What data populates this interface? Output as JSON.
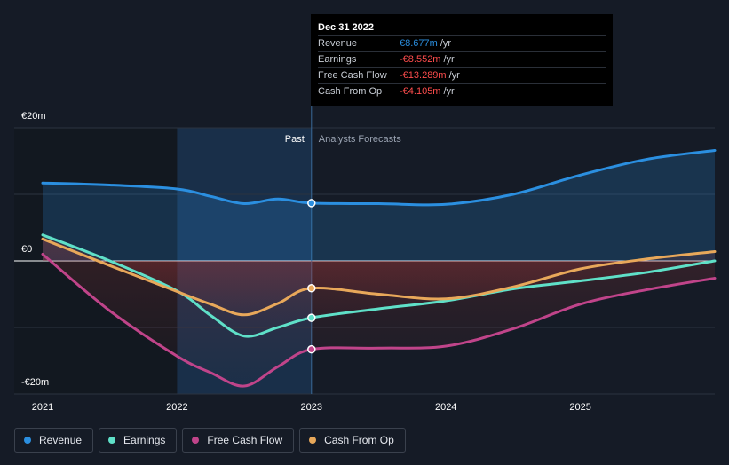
{
  "tooltip": {
    "title": "Dec 31 2022",
    "rows": [
      {
        "name": "Revenue",
        "value": "€8.677m",
        "unit": "/yr",
        "color": "#2b8fe0"
      },
      {
        "name": "Earnings",
        "value": "-€8.552m",
        "unit": "/yr",
        "color": "#ff4d4d"
      },
      {
        "name": "Free Cash Flow",
        "value": "-€13.289m",
        "unit": "/yr",
        "color": "#ff4d4d"
      },
      {
        "name": "Cash From Op",
        "value": "-€4.105m",
        "unit": "/yr",
        "color": "#ff4d4d"
      }
    ]
  },
  "legend": [
    {
      "label": "Revenue",
      "color": "#2b8fe0"
    },
    {
      "label": "Earnings",
      "color": "#5fe0c8"
    },
    {
      "label": "Free Cash Flow",
      "color": "#c0448a"
    },
    {
      "label": "Cash From Op",
      "color": "#e8a85a"
    }
  ],
  "chart_data": {
    "type": "line",
    "y_labels": [
      "€20m",
      "€0",
      "-€20m"
    ],
    "y_label_values": [
      20,
      0,
      -20
    ],
    "ylim": [
      -20,
      20
    ],
    "xlim": [
      2021,
      2026
    ],
    "x_ticks": [
      {
        "label": "2021",
        "value": 2021.0
      },
      {
        "label": "2022",
        "value": 2022.0
      },
      {
        "label": "2023",
        "value": 2023.0
      },
      {
        "label": "2024",
        "value": 2024.0
      },
      {
        "label": "2025",
        "value": 2025.0
      }
    ],
    "past_label": "Past",
    "forecast_label": "Analysts Forecasts",
    "divider_x": 2023.0,
    "grid": true,
    "legend_position": "bottom-left",
    "series": [
      {
        "name": "Revenue",
        "color": "#2b8fe0",
        "x": [
          2021.0,
          2021.5,
          2022.0,
          2022.25,
          2022.5,
          2022.75,
          2023.0,
          2023.5,
          2024.0,
          2024.5,
          2025.0,
          2025.5,
          2026.0
        ],
        "y": [
          11.7,
          11.4,
          10.8,
          9.7,
          8.6,
          9.3,
          8.677,
          8.6,
          8.5,
          10.0,
          12.9,
          15.3,
          16.6
        ]
      },
      {
        "name": "Earnings",
        "color": "#5fe0c8",
        "x": [
          2021.0,
          2021.5,
          2022.0,
          2022.25,
          2022.5,
          2022.75,
          2023.0,
          2023.5,
          2024.0,
          2024.5,
          2025.0,
          2025.5,
          2026.0
        ],
        "y": [
          3.9,
          0.0,
          -4.5,
          -8.2,
          -11.3,
          -10.0,
          -8.552,
          -7.2,
          -6.0,
          -4.2,
          -3.0,
          -1.7,
          0.0
        ]
      },
      {
        "name": "Free Cash Flow",
        "color": "#c0448a",
        "x": [
          2021.0,
          2021.5,
          2022.0,
          2022.25,
          2022.5,
          2022.75,
          2023.0,
          2023.5,
          2024.0,
          2024.5,
          2025.0,
          2025.5,
          2026.0
        ],
        "y": [
          1.0,
          -7.5,
          -14.3,
          -16.8,
          -18.8,
          -15.9,
          -13.289,
          -13.1,
          -12.8,
          -10.2,
          -6.5,
          -4.3,
          -2.6
        ]
      },
      {
        "name": "Cash From Op",
        "color": "#e8a85a",
        "x": [
          2021.0,
          2021.5,
          2022.0,
          2022.25,
          2022.5,
          2022.75,
          2023.0,
          2023.5,
          2024.0,
          2024.5,
          2025.0,
          2025.5,
          2026.0
        ],
        "y": [
          3.3,
          -0.7,
          -4.6,
          -6.5,
          -8.1,
          -6.4,
          -4.105,
          -5.0,
          -5.7,
          -3.9,
          -1.2,
          0.3,
          1.4
        ]
      }
    ]
  }
}
